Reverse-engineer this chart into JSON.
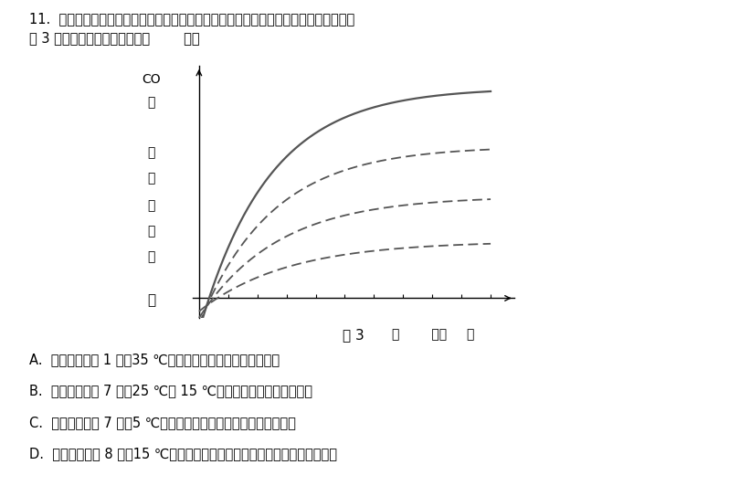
{
  "title_line1": "11.  某研究者研究不同的光照强度、温度对植物光合作用和呼吸作用的影响，实验结果如",
  "title_line2": "图 3 所示。下列分析正确的是（        ）。",
  "fig_caption": "图 3",
  "ylabel_top": "CO",
  "ylabel_mid": "的\n\n速\n率\n（\n相",
  "ylabel_bot": "\n）",
  "xlabel_text": "照        （相     ）",
  "tilde": "～",
  "background": "#ffffff",
  "options": [
    "A.  光照强度等于 1 时，35 ℃条件下总光合速率等于呼吸速率",
    "B.  光照强度大于 7 时，25 ℃和 15 ℃条件下植物总光合速率相同",
    "C.  光照强度大于 7 时，5 ℃条件下与光合作用有关的酶的活性最高",
    "D.  光照强度等于 8 时，15 ℃条件下植物释放氧气的速率比其他实验组的更大"
  ],
  "curve1": {
    "A": 5.2,
    "k": 0.42,
    "R": 0.7,
    "style": "solid"
  },
  "curve2": {
    "A": 3.8,
    "k": 0.4,
    "R": 0.55,
    "style": "dashed"
  },
  "curve3": {
    "A": 2.6,
    "k": 0.37,
    "R": 0.42,
    "style": "dashed"
  },
  "curve4": {
    "A": 1.5,
    "k": 0.33,
    "R": 0.28,
    "style": "dashed"
  }
}
